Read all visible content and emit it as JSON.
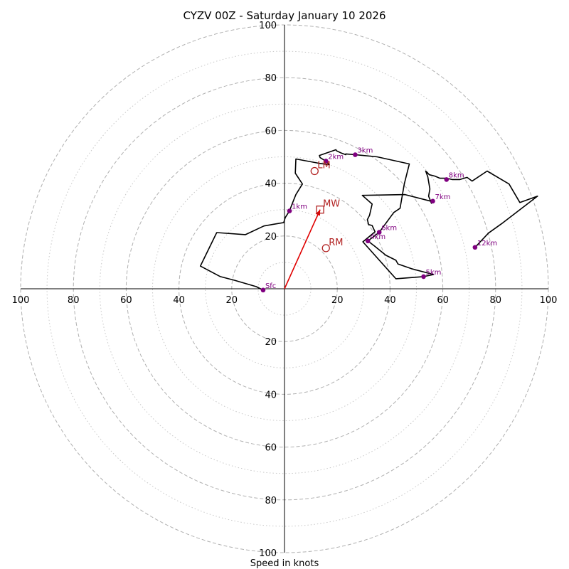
{
  "chart_data": {
    "type": "scatter",
    "title": "CYZV 00Z - Saturday January 10 2026",
    "xlabel": "Speed in knots",
    "ylabel": "",
    "xlim": [
      -100,
      100
    ],
    "ylim": [
      -100,
      100
    ],
    "grid": true,
    "rings": {
      "major": [
        20,
        40,
        60,
        80,
        100
      ],
      "minor": [
        10,
        30,
        50,
        70,
        90
      ]
    },
    "x_ticks": [
      {
        "value": -100,
        "label": "100"
      },
      {
        "value": -80,
        "label": "80"
      },
      {
        "value": -60,
        "label": "60"
      },
      {
        "value": -40,
        "label": "40"
      },
      {
        "value": -20,
        "label": "20"
      },
      {
        "value": 20,
        "label": "20"
      },
      {
        "value": 40,
        "label": "40"
      },
      {
        "value": 60,
        "label": "60"
      },
      {
        "value": 80,
        "label": "80"
      },
      {
        "value": 100,
        "label": "100"
      }
    ],
    "y_ticks": [
      {
        "value": 100,
        "label": "100"
      },
      {
        "value": 80,
        "label": "80"
      },
      {
        "value": 60,
        "label": "60"
      },
      {
        "value": 40,
        "label": "40"
      },
      {
        "value": 20,
        "label": "20"
      },
      {
        "value": -20,
        "label": "20"
      },
      {
        "value": -40,
        "label": "40"
      },
      {
        "value": -60,
        "label": "60"
      },
      {
        "value": -80,
        "label": "80"
      },
      {
        "value": -100,
        "label": "100"
      }
    ],
    "hodograph": {
      "name": "Wind profile (u, v)",
      "color": "#000000",
      "points": [
        [
          -8.1,
          -0.5
        ],
        [
          -10.7,
          0.8
        ],
        [
          -18.9,
          3.2
        ],
        [
          -24.3,
          4.6
        ],
        [
          -31.9,
          8.6
        ],
        [
          -25.7,
          21.3
        ],
        [
          -14.8,
          20.5
        ],
        [
          -7.8,
          23.8
        ],
        [
          -0.3,
          25.1
        ],
        [
          0.3,
          27.0
        ],
        [
          1.9,
          29.5
        ],
        [
          3.0,
          32.4
        ],
        [
          4.3,
          35.7
        ],
        [
          6.8,
          39.7
        ],
        [
          4.1,
          43.8
        ],
        [
          4.3,
          49.2
        ],
        [
          12.8,
          47.6
        ],
        [
          17.0,
          47.0
        ],
        [
          15.6,
          48.4
        ],
        [
          13.5,
          49.7
        ],
        [
          13.2,
          50.5
        ],
        [
          19.5,
          52.7
        ],
        [
          19.7,
          52.3
        ],
        [
          21.6,
          51.4
        ],
        [
          23.2,
          50.8
        ],
        [
          23.2,
          51.1
        ],
        [
          26.8,
          50.8
        ],
        [
          35.1,
          50.0
        ],
        [
          47.3,
          47.3
        ],
        [
          45.4,
          39.7
        ],
        [
          43.8,
          30.5
        ],
        [
          41.4,
          28.9
        ],
        [
          35.9,
          21.4
        ],
        [
          31.6,
          18.1
        ],
        [
          34.1,
          16.2
        ],
        [
          38.4,
          12.7
        ],
        [
          42.2,
          10.8
        ],
        [
          43.0,
          9.4
        ],
        [
          48.1,
          7.6
        ],
        [
          56.5,
          5.4
        ],
        [
          52.7,
          4.6
        ],
        [
          42.2,
          3.8
        ],
        [
          29.7,
          17.8
        ],
        [
          34.3,
          21.6
        ],
        [
          33.2,
          24.0
        ],
        [
          31.9,
          24.3
        ],
        [
          31.4,
          26.2
        ],
        [
          32.2,
          27.8
        ],
        [
          33.2,
          32.1
        ],
        [
          29.5,
          35.4
        ],
        [
          45.7,
          35.7
        ],
        [
          55.4,
          33.2
        ],
        [
          55.7,
          32.4
        ],
        [
          54.6,
          35.1
        ],
        [
          55.1,
          37.8
        ],
        [
          54.3,
          42.4
        ],
        [
          53.5,
          44.6
        ],
        [
          54.9,
          43.2
        ],
        [
          57.0,
          42.7
        ],
        [
          58.9,
          41.9
        ],
        [
          61.4,
          41.9
        ],
        [
          63.5,
          41.4
        ],
        [
          66.5,
          41.4
        ],
        [
          69.2,
          42.2
        ],
        [
          71.1,
          40.8
        ],
        [
          76.8,
          44.6
        ],
        [
          85.1,
          39.7
        ],
        [
          89.2,
          32.7
        ],
        [
          95.9,
          35.1
        ],
        [
          82.2,
          24.6
        ],
        [
          77.3,
          21.1
        ],
        [
          72.2,
          15.7
        ]
      ],
      "height_markers": [
        {
          "label": "Sfc",
          "u": -8.1,
          "v": -0.5
        },
        {
          "label": "1km",
          "u": 1.9,
          "v": 29.5
        },
        {
          "label": "2km",
          "u": 15.7,
          "v": 48.4
        },
        {
          "label": "3km",
          "u": 26.8,
          "v": 50.8
        },
        {
          "label": "4km",
          "u": 31.6,
          "v": 18.1
        },
        {
          "label": "5km",
          "u": 52.7,
          "v": 4.6
        },
        {
          "label": "6km",
          "u": 35.9,
          "v": 21.4
        },
        {
          "label": "7km",
          "u": 56.2,
          "v": 33.2
        },
        {
          "label": "8km",
          "u": 61.4,
          "v": 41.4
        },
        {
          "label": "12km",
          "u": 72.2,
          "v": 15.7
        }
      ]
    },
    "storm_motion": {
      "mean_wind": {
        "label": "MW",
        "u": 13.5,
        "v": 30.0,
        "marker": "square"
      },
      "right_mover": {
        "label": "RM",
        "u": 15.7,
        "v": 15.4,
        "marker": "circle"
      },
      "left_mover": {
        "label": "LM",
        "u": 11.4,
        "v": 44.6,
        "marker": "circle"
      },
      "arrow": {
        "from": [
          0,
          0
        ],
        "to": [
          13.5,
          30.0
        ],
        "color": "#e00000"
      }
    },
    "colors": {
      "hodograph": "#000000",
      "height_marker": "#800080",
      "storm_motion": "#b22222",
      "arrow": "#e00000",
      "grid": "#b0b0b0"
    }
  }
}
